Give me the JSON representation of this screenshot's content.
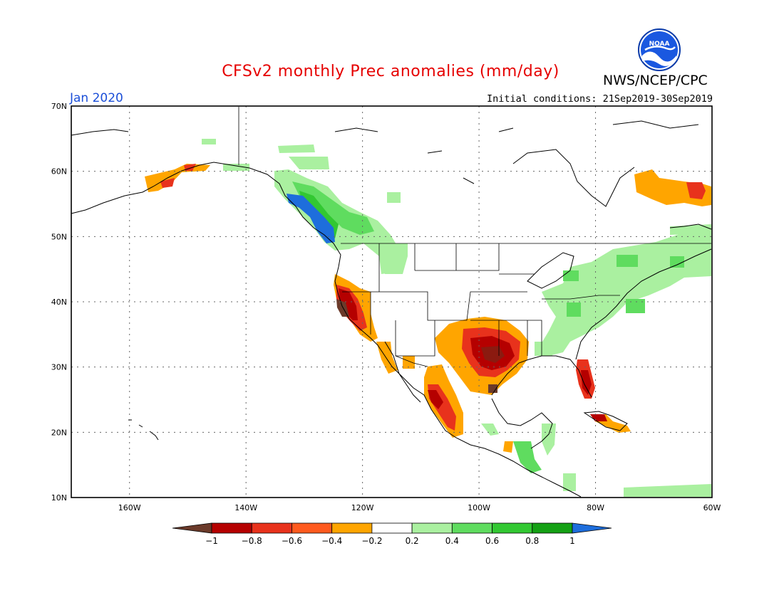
{
  "title": "CFSv2 monthly Prec anomalies (mm/day)",
  "agency": "NWS/NCEP/CPC",
  "logo_text": "NOAA",
  "month": "Jan 2020",
  "initial_conditions": "Initial conditions: 21Sep2019-30Sep2019",
  "lat_labels": [
    "70N",
    "60N",
    "50N",
    "40N",
    "30N",
    "20N",
    "10N"
  ],
  "lon_labels": [
    "160W",
    "140W",
    "120W",
    "100W",
    "80W",
    "60W"
  ],
  "colorbar": {
    "labels": [
      "-1",
      "-0.8",
      "-0.6",
      "-0.4",
      "-0.2",
      "0.2",
      "0.4",
      "0.6",
      "0.8",
      "1"
    ],
    "colors": [
      "#6b3a2a",
      "#b50000",
      "#e8321c",
      "#ff5a1e",
      "#ffa500",
      "#ffffff",
      "#aaf0a0",
      "#5fdc5f",
      "#32c832",
      "#14a014",
      "#1e6edc"
    ]
  },
  "regions": [
    {
      "name": "alaska-dry",
      "category": "-0.4"
    },
    {
      "name": "pacific-northwest-wet",
      "category": "1"
    },
    {
      "name": "california-dry",
      "category": "-1"
    },
    {
      "name": "texas-dry",
      "category": "-0.8"
    },
    {
      "name": "florida-dry",
      "category": "-0.8"
    },
    {
      "name": "west-mexico-dry",
      "category": "-0.8"
    },
    {
      "name": "northeast-wet",
      "category": "0.4"
    },
    {
      "name": "labrador-dry",
      "category": "-0.6"
    },
    {
      "name": "cuba-dry",
      "category": "-0.8"
    }
  ]
}
